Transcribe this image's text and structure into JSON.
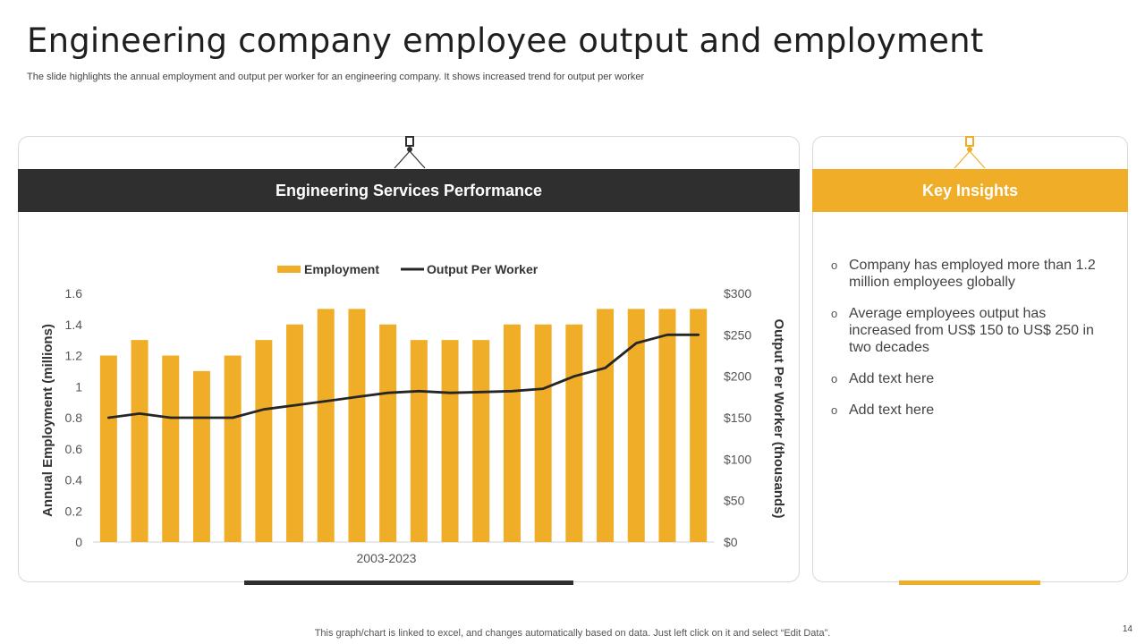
{
  "slide": {
    "title": "Engineering company employee output and employment",
    "subtitle": "The slide highlights the annual employment and output per worker for an engineering company. It shows increased trend for output per worker",
    "footer_note": "This graph/chart is linked to excel,  and changes automatically based on data. Just left click on it and select “Edit Data”.",
    "page_number": "14"
  },
  "left_panel": {
    "heading": "Engineering Services Performance"
  },
  "right_panel": {
    "heading": "Key Insights",
    "bullet_glyph": "o",
    "insights": [
      "Company has employed more than 1.2 million employees globally",
      "Average employees output has increased from US$ 150 to US$ 250 in two decades",
      "Add text here",
      "Add text here"
    ]
  },
  "colors": {
    "gold": "#f0ad27",
    "dark": "#2f2f2f",
    "line": "#262626"
  },
  "chart_data": {
    "type": "bar",
    "xlabel": "2003-2023",
    "ylabel": "Annual Employment (millions)",
    "y2label": "Output Per Worker (thousands)",
    "ylim": [
      0,
      1.6
    ],
    "y2lim": [
      0,
      300
    ],
    "yticks": [
      "0",
      "0.2",
      "0.4",
      "0.6",
      "0.8",
      "1",
      "1.2",
      "1.4",
      "1.6"
    ],
    "y2ticks": [
      "$0",
      "$50",
      "$100",
      "$150",
      "$200",
      "$250",
      "$300"
    ],
    "legend_position": "top-center",
    "grid": false,
    "series": [
      {
        "name": "Employment",
        "kind": "bar",
        "axis": "left",
        "values": [
          1.2,
          1.3,
          1.2,
          1.1,
          1.2,
          1.3,
          1.4,
          1.5,
          1.5,
          1.4,
          1.3,
          1.3,
          1.3,
          1.4,
          1.4,
          1.4,
          1.5,
          1.5,
          1.5,
          1.5
        ]
      },
      {
        "name": "Output Per Worker",
        "kind": "line",
        "axis": "right",
        "values": [
          150,
          155,
          150,
          150,
          150,
          160,
          165,
          170,
          175,
          180,
          182,
          180,
          181,
          182,
          185,
          200,
          210,
          240,
          250,
          250
        ]
      }
    ]
  }
}
